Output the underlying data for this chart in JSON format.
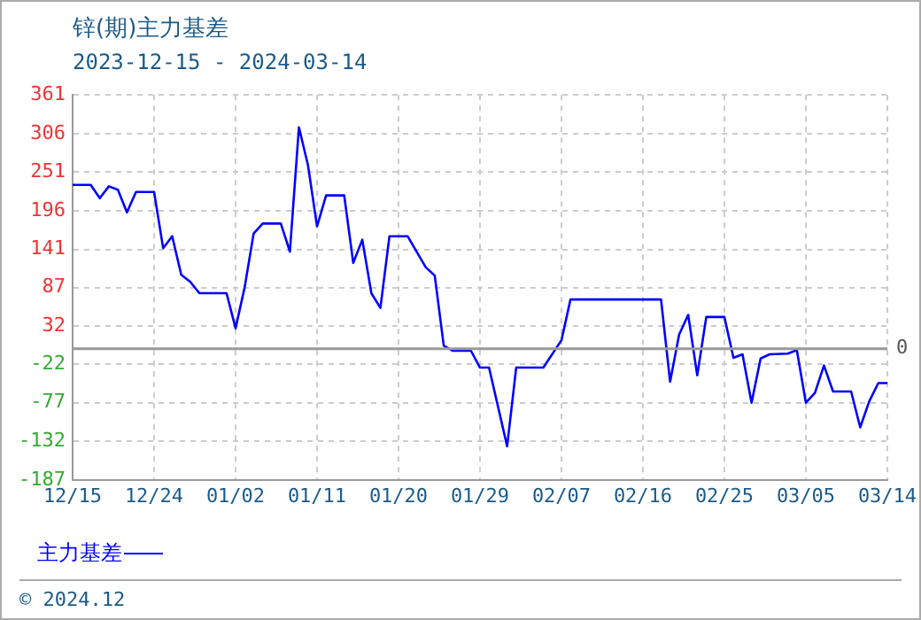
{
  "chart_data": {
    "type": "line",
    "title": "锌(期)主力基差",
    "subtitle": "2023-12-15 - 2024-03-14",
    "x": [
      "2023-12-15",
      "2023-12-17",
      "2023-12-18",
      "2023-12-19",
      "2023-12-20",
      "2023-12-21",
      "2023-12-22",
      "2023-12-24",
      "2023-12-25",
      "2023-12-26",
      "2023-12-27",
      "2023-12-28",
      "2023-12-29",
      "2024-01-01",
      "2024-01-02",
      "2024-01-03",
      "2024-01-04",
      "2024-01-05",
      "2024-01-07",
      "2024-01-08",
      "2024-01-09",
      "2024-01-10",
      "2024-01-11",
      "2024-01-12",
      "2024-01-14",
      "2024-01-15",
      "2024-01-16",
      "2024-01-17",
      "2024-01-18",
      "2024-01-19",
      "2024-01-21",
      "2024-01-23",
      "2024-01-24",
      "2024-01-25",
      "2024-01-26",
      "2024-01-28",
      "2024-01-29",
      "2024-01-30",
      "2024-02-01",
      "2024-02-02",
      "2024-02-05",
      "2024-02-07",
      "2024-02-08",
      "2024-02-18",
      "2024-02-19",
      "2024-02-20",
      "2024-02-21",
      "2024-02-22",
      "2024-02-23",
      "2024-02-25",
      "2024-02-26",
      "2024-02-27",
      "2024-02-28",
      "2024-02-29",
      "2024-03-01",
      "2024-03-03",
      "2024-03-04",
      "2024-03-05",
      "2024-03-06",
      "2024-03-07",
      "2024-03-08",
      "2024-03-10",
      "2024-03-11",
      "2024-03-12",
      "2024-03-13",
      "2024-03-14"
    ],
    "series": [
      {
        "name": "主力基差",
        "color": "#0000ff",
        "values": [
          233,
          233,
          214,
          231,
          226,
          194,
          223,
          223,
          143,
          160,
          105,
          95,
          79,
          79,
          29,
          87,
          164,
          178,
          178,
          138,
          315,
          261,
          174,
          218,
          218,
          122,
          155,
          79,
          58,
          160,
          160,
          116,
          104,
          4,
          -3,
          -3,
          -27,
          -27,
          -139,
          -27,
          -27,
          12,
          70,
          70,
          -47,
          20,
          48,
          -38,
          45,
          45,
          -13,
          -8,
          -77,
          -14,
          -8,
          -7,
          -2,
          -77,
          -63,
          -24,
          -61,
          -61,
          -112,
          -75,
          -49,
          -49
        ]
      }
    ],
    "xlim": [
      "2023-12-15",
      "2024-03-14"
    ],
    "xticks": [
      {
        "value": "2023-12-15",
        "label": "12/15"
      },
      {
        "value": "2023-12-24",
        "label": "12/24"
      },
      {
        "value": "2024-01-02",
        "label": "01/02"
      },
      {
        "value": "2024-01-11",
        "label": "01/11"
      },
      {
        "value": "2024-01-20",
        "label": "01/20"
      },
      {
        "value": "2024-01-29",
        "label": "01/29"
      },
      {
        "value": "2024-02-07",
        "label": "02/07"
      },
      {
        "value": "2024-02-16",
        "label": "02/16"
      },
      {
        "value": "2024-02-25",
        "label": "02/25"
      },
      {
        "value": "2024-03-05",
        "label": "03/05"
      },
      {
        "value": "2024-03-14",
        "label": "03/14"
      }
    ],
    "ylim": [
      -187,
      361
    ],
    "yticks": [
      -187,
      -132,
      -77,
      -22,
      32,
      87,
      141,
      196,
      251,
      306,
      361
    ],
    "ref_lines": [
      {
        "axis": "y",
        "value": 0,
        "label": "0",
        "color": "#999999"
      }
    ],
    "grid": true,
    "legend": "bottom left",
    "marker": "none",
    "line_style": "solid",
    "annotations": [
      "© 2024.12"
    ]
  }
}
